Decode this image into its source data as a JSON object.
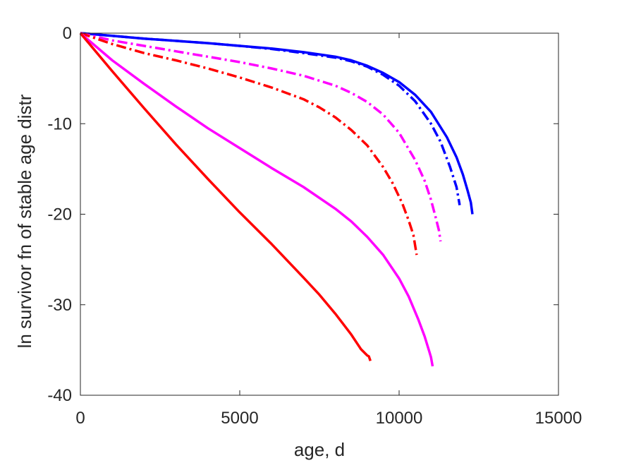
{
  "chart_data": {
    "type": "line",
    "title": "",
    "xlabel": "age, d",
    "ylabel": "ln survivor fn of stable age distr",
    "xlim": [
      0,
      15000
    ],
    "ylim": [
      -40,
      0
    ],
    "xticks": [
      0,
      5000,
      10000,
      15000
    ],
    "yticks": [
      -40,
      -30,
      -20,
      -10,
      0
    ],
    "xtick_labels": [
      "0",
      "5000",
      "10000",
      "15000"
    ],
    "ytick_labels": [
      "-40",
      "-30",
      "-20",
      "-10",
      "0"
    ],
    "grid": false,
    "legend": false,
    "series": [
      {
        "color": "#0000ff",
        "line_style": "solid",
        "x": [
          0,
          1000,
          2000,
          3000,
          4000,
          5000,
          6000,
          7000,
          8000,
          8500,
          9000,
          9500,
          10000,
          10500,
          11000,
          11500,
          11800,
          12000,
          12150,
          12250,
          12300
        ],
        "y": [
          0,
          -0.3,
          -0.6,
          -0.85,
          -1.1,
          -1.4,
          -1.7,
          -2.1,
          -2.6,
          -3.0,
          -3.6,
          -4.4,
          -5.4,
          -6.8,
          -8.7,
          -11.5,
          -13.7,
          -15.6,
          -17.4,
          -18.7,
          -20.0
        ]
      },
      {
        "color": "#0000ff",
        "line_style": "dashdot",
        "x": [
          0,
          1000,
          2000,
          3000,
          4000,
          5000,
          6000,
          7000,
          8000,
          8500,
          9000,
          9500,
          10000,
          10500,
          11000,
          11300,
          11600,
          11800,
          11900
        ],
        "y": [
          0,
          -0.3,
          -0.6,
          -0.85,
          -1.1,
          -1.4,
          -1.75,
          -2.2,
          -2.7,
          -3.1,
          -3.7,
          -4.6,
          -5.8,
          -7.5,
          -10.0,
          -12.0,
          -14.8,
          -17.0,
          -19.0
        ]
      },
      {
        "color": "#ff00ff",
        "line_style": "dashdot",
        "x": [
          0,
          1000,
          2000,
          3000,
          4000,
          5000,
          6000,
          7000,
          8000,
          8500,
          9000,
          9500,
          10000,
          10500,
          10800,
          11000,
          11150,
          11250,
          11300
        ],
        "y": [
          0,
          -0.8,
          -1.4,
          -2.0,
          -2.6,
          -3.2,
          -3.9,
          -4.7,
          -5.8,
          -6.6,
          -7.6,
          -9.0,
          -11.0,
          -14.0,
          -16.3,
          -18.4,
          -20.4,
          -21.8,
          -23.0
        ]
      },
      {
        "color": "#ff0000",
        "line_style": "dashdot",
        "x": [
          0,
          1000,
          2000,
          3000,
          4000,
          5000,
          6000,
          7000,
          7500,
          8000,
          8500,
          9000,
          9500,
          9800,
          10100,
          10300,
          10450,
          10500,
          10550
        ],
        "y": [
          0,
          -1.2,
          -2.2,
          -3.0,
          -3.9,
          -4.9,
          -6.0,
          -7.3,
          -8.2,
          -9.3,
          -10.7,
          -12.4,
          -14.8,
          -16.6,
          -18.8,
          -20.7,
          -22.3,
          -23.4,
          -24.5
        ]
      },
      {
        "color": "#ff00ff",
        "line_style": "solid",
        "x": [
          0,
          1000,
          2000,
          3000,
          4000,
          5000,
          6000,
          7000,
          8000,
          8500,
          9000,
          9500,
          10000,
          10300,
          10600,
          10800,
          10950,
          11000,
          11050
        ],
        "y": [
          0,
          -3.0,
          -5.6,
          -8.1,
          -10.5,
          -12.7,
          -14.9,
          -17.0,
          -19.4,
          -20.8,
          -22.5,
          -24.5,
          -27.1,
          -29.1,
          -31.6,
          -33.5,
          -35.2,
          -35.8,
          -36.8
        ]
      },
      {
        "color": "#ff0000",
        "line_style": "solid",
        "x": [
          0,
          1000,
          2000,
          3000,
          4000,
          5000,
          6000,
          7000,
          7500,
          8000,
          8500,
          8800,
          9000,
          9050,
          9100
        ],
        "y": [
          0,
          -4.2,
          -8.3,
          -12.3,
          -16.1,
          -19.8,
          -23.3,
          -27.0,
          -28.9,
          -31.0,
          -33.3,
          -34.9,
          -35.6,
          -35.7,
          -36.2
        ]
      }
    ]
  }
}
